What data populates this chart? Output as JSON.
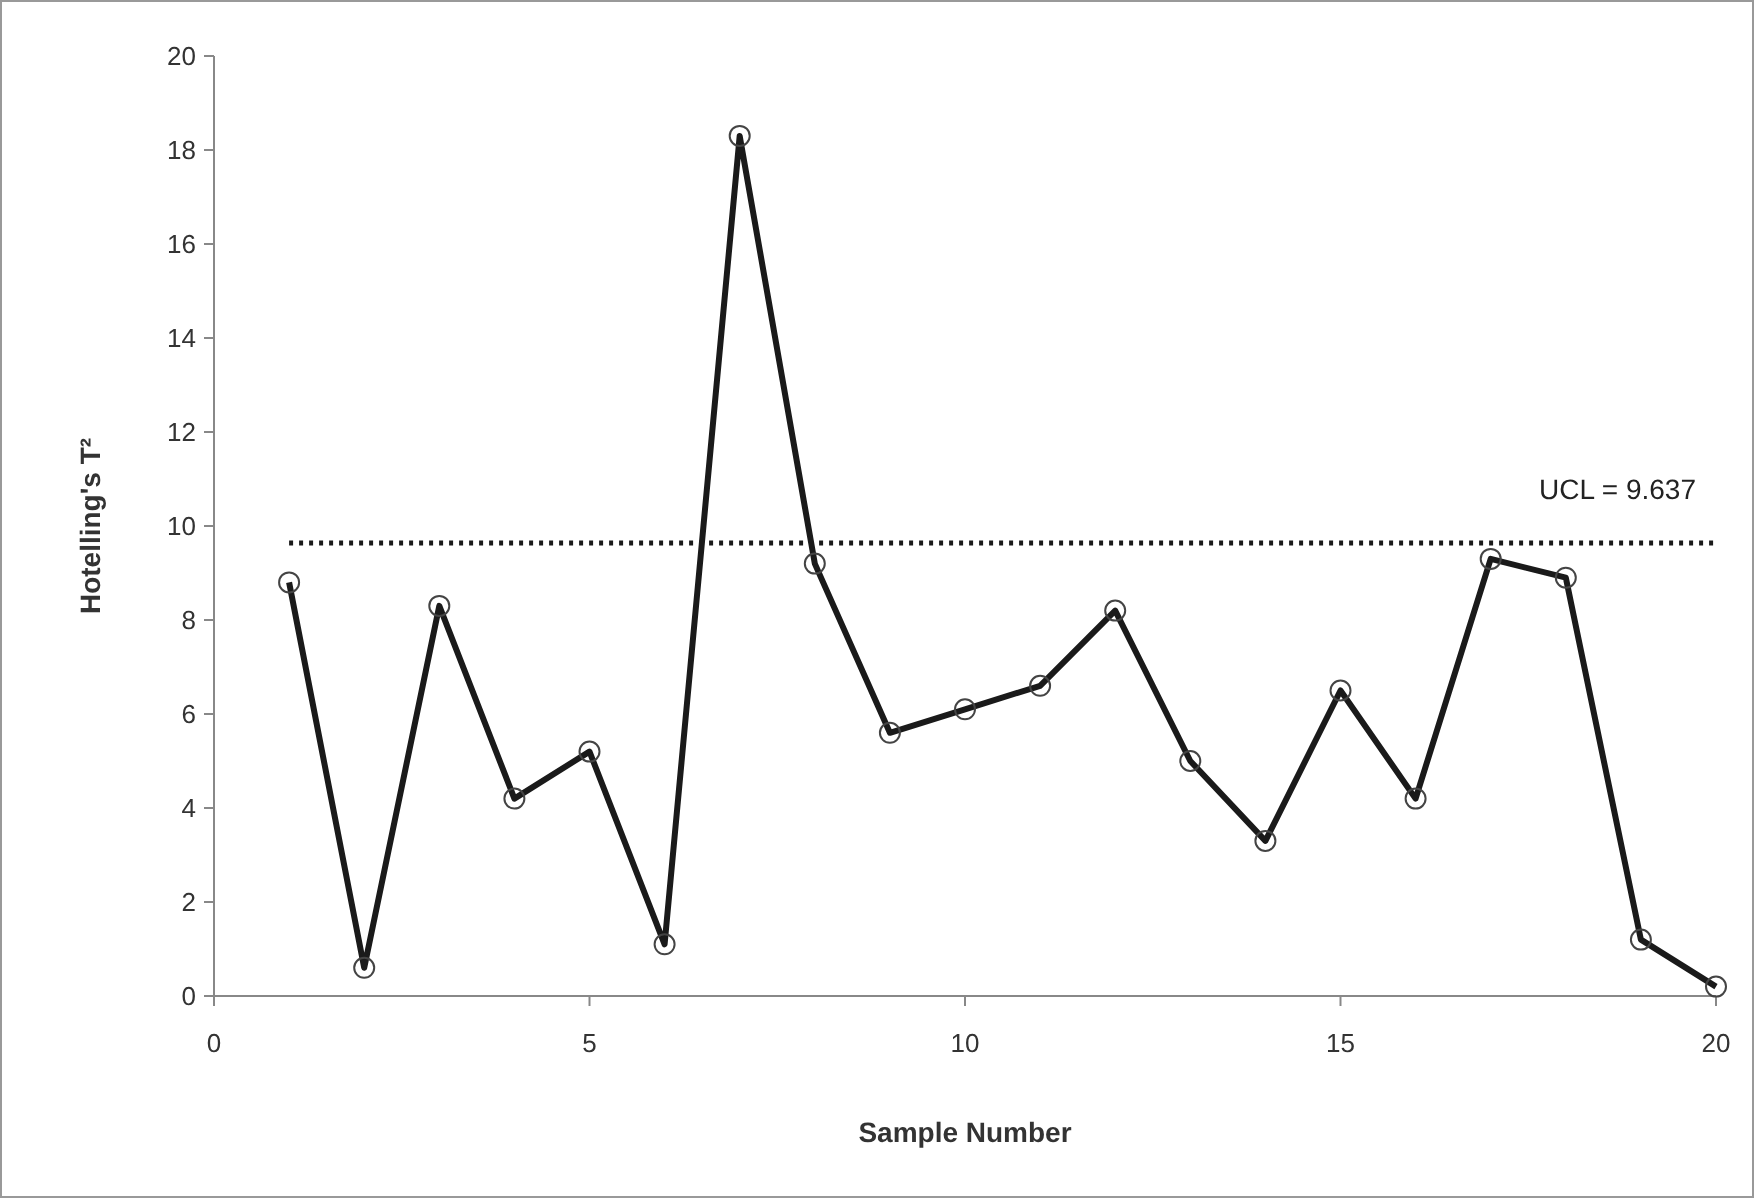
{
  "chart_data": {
    "type": "line",
    "xlabel": "Sample Number",
    "ylabel": "Hotelling's T²",
    "x": [
      1,
      2,
      3,
      4,
      5,
      6,
      7,
      8,
      9,
      10,
      11,
      12,
      13,
      14,
      15,
      16,
      17,
      18,
      19,
      20
    ],
    "series": [
      {
        "color": "#1a1a1a",
        "values": [
          8.8,
          0.6,
          8.3,
          4.2,
          5.2,
          1.1,
          18.3,
          9.2,
          5.6,
          6.1,
          6.6,
          8.2,
          5.0,
          3.3,
          6.5,
          4.2,
          9.3,
          8.9,
          1.2,
          0.2
        ]
      }
    ],
    "xlim": [
      0,
      20
    ],
    "xticks": [
      0,
      5,
      10,
      15,
      20
    ],
    "ylim": [
      0,
      20
    ],
    "yticks": [
      0,
      2,
      4,
      6,
      8,
      10,
      12,
      14,
      16,
      18,
      20
    ],
    "ref_lines": [
      {
        "axis": "y",
        "value": 9.637,
        "label": "UCL = 9.637",
        "color": "#1a1a1a",
        "line_style": "dotted"
      }
    ],
    "marker": "circle",
    "line_style": "solid",
    "grid": false
  }
}
